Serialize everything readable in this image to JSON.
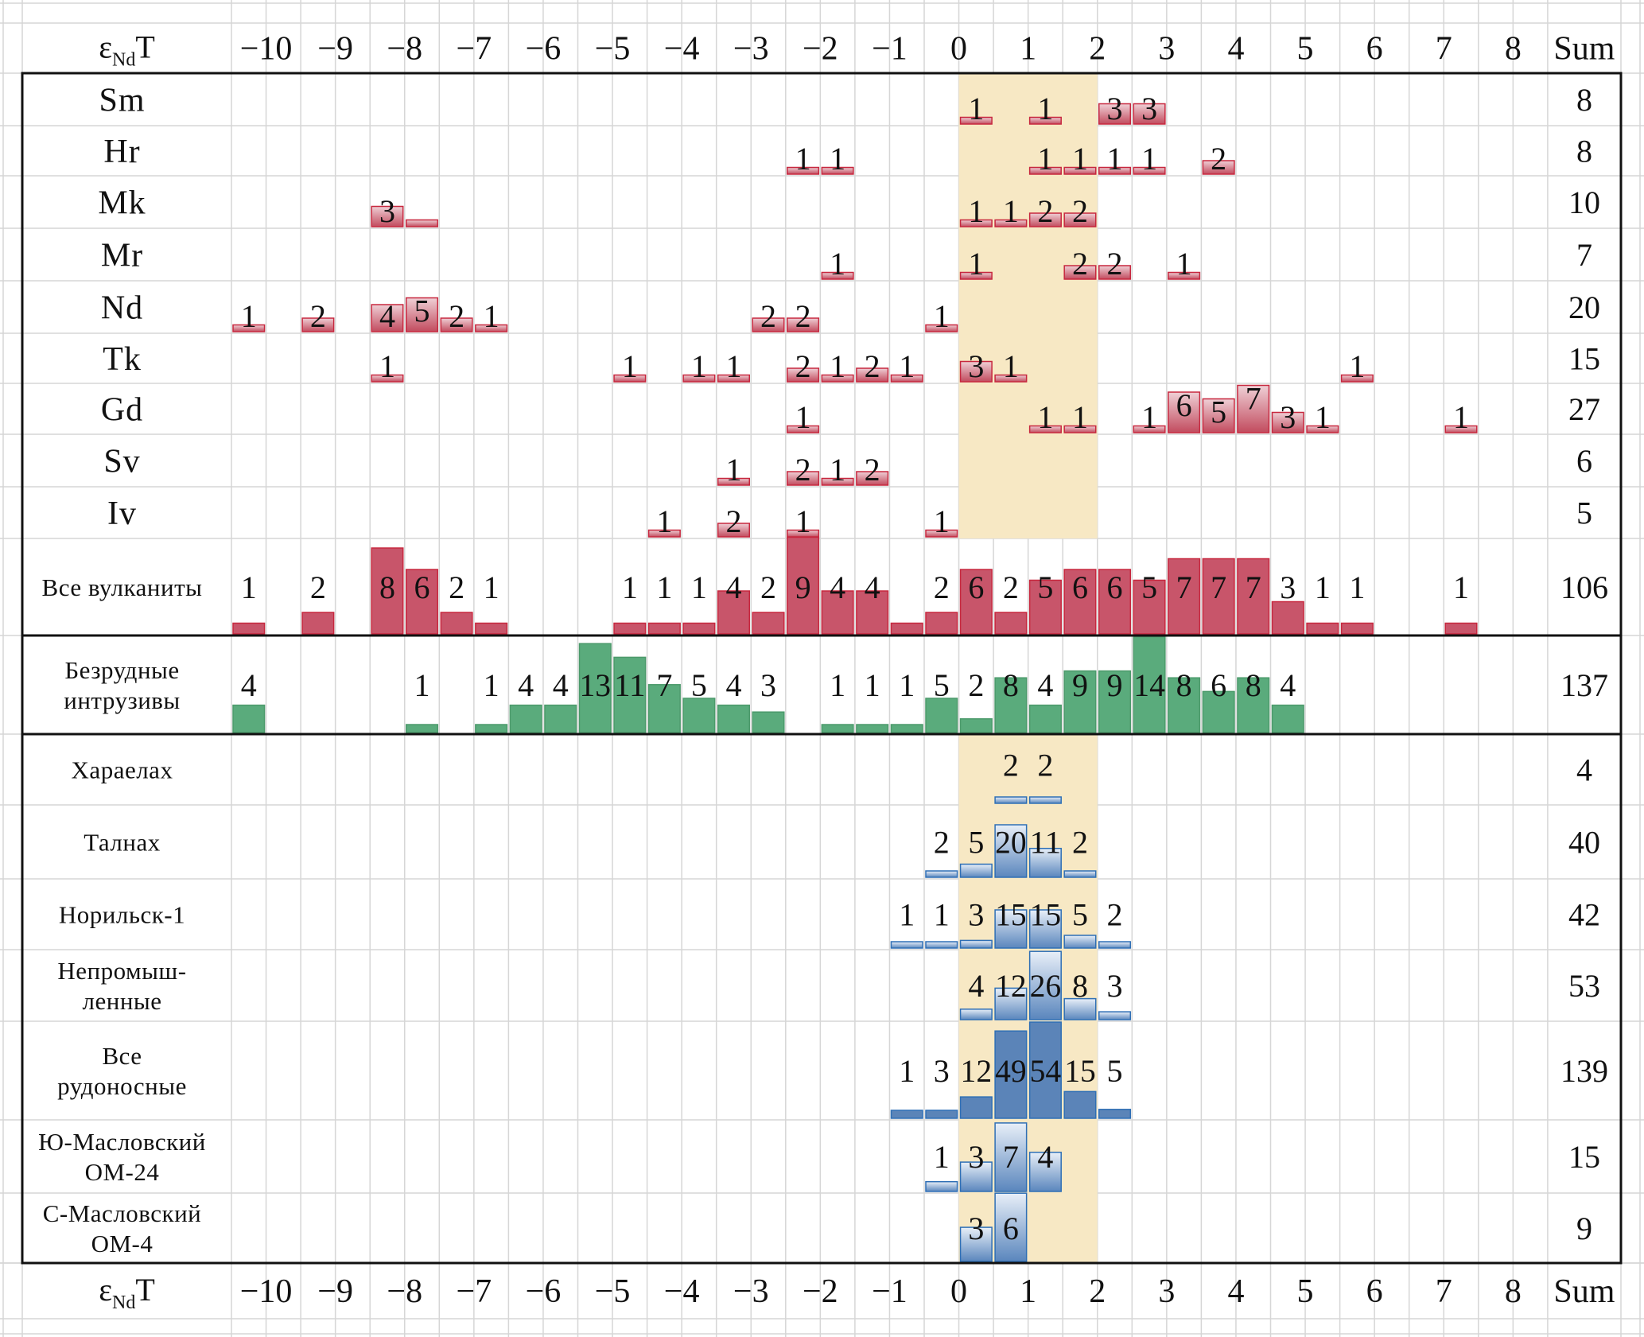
{
  "chart_data": {
    "type": "bar",
    "title": "",
    "axis_label": "εNdT",
    "axis_label_main": "ε",
    "axis_label_sub": "Nd",
    "axis_label_suffix": "T",
    "sum_label": "Sum",
    "bin_width": 0.5,
    "bins_start": -10,
    "bins_end": 8.5,
    "tick_labels": [
      "−10",
      "−9",
      "−8",
      "−7",
      "−6",
      "−5",
      "−4",
      "−3",
      "−2",
      "−1",
      "0",
      "1",
      "2",
      "3",
      "4",
      "5",
      "6",
      "7",
      "8"
    ],
    "tick_values": [
      -10,
      -9,
      -8,
      -7,
      -6,
      -5,
      -4,
      -3,
      -2,
      -1,
      0,
      1,
      2,
      3,
      4,
      5,
      6,
      7,
      8
    ],
    "highlight_range": [
      0.5,
      2.5
    ],
    "colors": {
      "volcanic": "#c8556a",
      "volcanic_light": "#ecc6cd",
      "volcanic_border": "#c7283f",
      "intrusive": "#5aab7c",
      "intrusive_border": "#4c9a6b",
      "ore": "#5b84b8",
      "ore_light": "#e6eef8",
      "ore_border": "#2f6fb5",
      "highlight": "#f7e8c4",
      "grid": "#d6d6d6"
    },
    "groups": [
      {
        "name": "volcanics",
        "series": [
          {
            "name": "Sm",
            "sum": 8,
            "points": [
              {
                "x": 0.5,
                "n": 1
              },
              {
                "x": 1.5,
                "n": 1
              },
              {
                "x": 2.5,
                "n": 3
              },
              {
                "x": 3.0,
                "n": 3
              }
            ]
          },
          {
            "name": "Hr",
            "sum": 8,
            "points": [
              {
                "x": -2.0,
                "n": 1
              },
              {
                "x": -1.5,
                "n": 1
              },
              {
                "x": 1.5,
                "n": 1
              },
              {
                "x": 2.0,
                "n": 1
              },
              {
                "x": 2.5,
                "n": 1
              },
              {
                "x": 3.0,
                "n": 1
              },
              {
                "x": 4.0,
                "n": 2
              }
            ]
          },
          {
            "name": "Mk",
            "sum": 10,
            "points": [
              {
                "x": -8.0,
                "n": 3
              },
              {
                "x": -7.5,
                "n": 1,
                "unlabeled": true
              },
              {
                "x": 0.5,
                "n": 1
              },
              {
                "x": 1.0,
                "n": 1
              },
              {
                "x": 1.5,
                "n": 2
              },
              {
                "x": 2.0,
                "n": 2
              }
            ]
          },
          {
            "name": "Mr",
            "sum": 7,
            "points": [
              {
                "x": -1.5,
                "n": 1
              },
              {
                "x": 0.5,
                "n": 1
              },
              {
                "x": 2.0,
                "n": 2
              },
              {
                "x": 2.5,
                "n": 2
              },
              {
                "x": 3.5,
                "n": 1
              }
            ]
          },
          {
            "name": "Nd",
            "sum": 20,
            "points": [
              {
                "x": -10.0,
                "n": 1
              },
              {
                "x": -9.0,
                "n": 2
              },
              {
                "x": -8.0,
                "n": 4
              },
              {
                "x": -7.5,
                "n": 5
              },
              {
                "x": -7.0,
                "n": 2
              },
              {
                "x": -6.5,
                "n": 1
              },
              {
                "x": -2.5,
                "n": 2
              },
              {
                "x": -2.0,
                "n": 2
              },
              {
                "x": 0.0,
                "n": 1
              }
            ]
          },
          {
            "name": "Tk",
            "sum": 15,
            "points": [
              {
                "x": -8.0,
                "n": 1
              },
              {
                "x": -4.5,
                "n": 1
              },
              {
                "x": -3.5,
                "n": 1
              },
              {
                "x": -3.0,
                "n": 1
              },
              {
                "x": -2.0,
                "n": 2
              },
              {
                "x": -1.5,
                "n": 1
              },
              {
                "x": -1.0,
                "n": 2
              },
              {
                "x": -0.5,
                "n": 1
              },
              {
                "x": 0.5,
                "n": 3
              },
              {
                "x": 1.0,
                "n": 1
              },
              {
                "x": 6.0,
                "n": 1
              }
            ]
          },
          {
            "name": "Gd",
            "sum": 27,
            "points": [
              {
                "x": -2.0,
                "n": 1
              },
              {
                "x": 1.5,
                "n": 1
              },
              {
                "x": 2.0,
                "n": 1
              },
              {
                "x": 3.0,
                "n": 1
              },
              {
                "x": 3.5,
                "n": 6
              },
              {
                "x": 4.0,
                "n": 5
              },
              {
                "x": 4.5,
                "n": 7
              },
              {
                "x": 5.0,
                "n": 3
              },
              {
                "x": 5.5,
                "n": 1
              },
              {
                "x": 7.5,
                "n": 1
              }
            ]
          },
          {
            "name": "Sv",
            "sum": 6,
            "points": [
              {
                "x": -3.0,
                "n": 1
              },
              {
                "x": -2.0,
                "n": 2
              },
              {
                "x": -1.5,
                "n": 1
              },
              {
                "x": -1.0,
                "n": 2
              }
            ]
          },
          {
            "name": "Iv",
            "sum": 5,
            "points": [
              {
                "x": -4.0,
                "n": 1
              },
              {
                "x": -3.0,
                "n": 2
              },
              {
                "x": -2.0,
                "n": 1
              },
              {
                "x": 0.0,
                "n": 1
              }
            ]
          },
          {
            "name": "Все вулканиты",
            "sum": 106,
            "points": [
              {
                "x": -10.0,
                "n": 1
              },
              {
                "x": -9.0,
                "n": 2
              },
              {
                "x": -8.0,
                "n": 8
              },
              {
                "x": -7.5,
                "n": 6
              },
              {
                "x": -7.0,
                "n": 2
              },
              {
                "x": -6.5,
                "n": 1
              },
              {
                "x": -4.5,
                "n": 1
              },
              {
                "x": -4.0,
                "n": 1
              },
              {
                "x": -3.5,
                "n": 1
              },
              {
                "x": -3.0,
                "n": 4
              },
              {
                "x": -2.5,
                "n": 2
              },
              {
                "x": -2.0,
                "n": 9
              },
              {
                "x": -1.5,
                "n": 4
              },
              {
                "x": -1.0,
                "n": 4
              },
              {
                "x": -0.5,
                "n": 1,
                "unlabeled": true
              },
              {
                "x": 0.0,
                "n": 2
              },
              {
                "x": 0.5,
                "n": 6
              },
              {
                "x": 1.0,
                "n": 2
              },
              {
                "x": 1.5,
                "n": 5
              },
              {
                "x": 2.0,
                "n": 6
              },
              {
                "x": 2.5,
                "n": 6
              },
              {
                "x": 3.0,
                "n": 5
              },
              {
                "x": 3.5,
                "n": 7
              },
              {
                "x": 4.0,
                "n": 7
              },
              {
                "x": 4.5,
                "n": 7
              },
              {
                "x": 5.0,
                "n": 3
              },
              {
                "x": 5.5,
                "n": 1
              },
              {
                "x": 6.0,
                "n": 1
              },
              {
                "x": 7.5,
                "n": 1
              }
            ]
          }
        ]
      },
      {
        "name": "barren_intrusions",
        "series": [
          {
            "name": "Безрудные интрузивы",
            "label_lines": [
              "Безрудные",
              "интрузивы"
            ],
            "sum": 137,
            "points": [
              {
                "x": -10.0,
                "n": 4
              },
              {
                "x": -7.5,
                "n": 1
              },
              {
                "x": -6.5,
                "n": 1
              },
              {
                "x": -6.0,
                "n": 4
              },
              {
                "x": -5.5,
                "n": 4
              },
              {
                "x": -5.0,
                "n": 13
              },
              {
                "x": -4.5,
                "n": 11
              },
              {
                "x": -4.0,
                "n": 7
              },
              {
                "x": -3.5,
                "n": 5
              },
              {
                "x": -3.0,
                "n": 4
              },
              {
                "x": -2.5,
                "n": 3
              },
              {
                "x": -1.5,
                "n": 1
              },
              {
                "x": -1.0,
                "n": 1
              },
              {
                "x": -0.5,
                "n": 1
              },
              {
                "x": 0.0,
                "n": 5
              },
              {
                "x": 0.5,
                "n": 2
              },
              {
                "x": 1.0,
                "n": 8
              },
              {
                "x": 1.5,
                "n": 4
              },
              {
                "x": 2.0,
                "n": 9
              },
              {
                "x": 2.5,
                "n": 9
              },
              {
                "x": 3.0,
                "n": 14
              },
              {
                "x": 3.5,
                "n": 8
              },
              {
                "x": 4.0,
                "n": 6
              },
              {
                "x": 4.5,
                "n": 8
              },
              {
                "x": 5.0,
                "n": 4
              }
            ]
          }
        ]
      },
      {
        "name": "ore_bearing",
        "series": [
          {
            "name": "Хараелах",
            "label_lines": [
              "Хараелах"
            ],
            "sum": 4,
            "points": [
              {
                "x": 1.0,
                "n": 2
              },
              {
                "x": 1.5,
                "n": 2
              }
            ]
          },
          {
            "name": "Талнах",
            "label_lines": [
              "Талнах"
            ],
            "sum": 40,
            "points": [
              {
                "x": 0.0,
                "n": 2
              },
              {
                "x": 0.5,
                "n": 5
              },
              {
                "x": 1.0,
                "n": 20
              },
              {
                "x": 1.5,
                "n": 11
              },
              {
                "x": 2.0,
                "n": 2
              }
            ]
          },
          {
            "name": "Норильск-1",
            "label_lines": [
              "Норильск-1"
            ],
            "sum": 42,
            "points": [
              {
                "x": -0.5,
                "n": 1
              },
              {
                "x": 0.0,
                "n": 1
              },
              {
                "x": 0.5,
                "n": 3
              },
              {
                "x": 1.0,
                "n": 15
              },
              {
                "x": 1.5,
                "n": 15
              },
              {
                "x": 2.0,
                "n": 5
              },
              {
                "x": 2.5,
                "n": 2
              }
            ]
          },
          {
            "name": "Непромышленные",
            "label_lines": [
              "Непромыш-",
              "ленные"
            ],
            "sum": 53,
            "points": [
              {
                "x": 0.5,
                "n": 4
              },
              {
                "x": 1.0,
                "n": 12
              },
              {
                "x": 1.5,
                "n": 26
              },
              {
                "x": 2.0,
                "n": 8
              },
              {
                "x": 2.5,
                "n": 3
              }
            ]
          },
          {
            "name": "Все рудоносные",
            "label_lines": [
              "Все",
              "рудоносные"
            ],
            "sum": 139,
            "solid": true,
            "points": [
              {
                "x": -0.5,
                "n": 1
              },
              {
                "x": 0.0,
                "n": 3
              },
              {
                "x": 0.5,
                "n": 12
              },
              {
                "x": 1.0,
                "n": 49
              },
              {
                "x": 1.5,
                "n": 54
              },
              {
                "x": 2.0,
                "n": 15
              },
              {
                "x": 2.5,
                "n": 5
              }
            ]
          },
          {
            "name": "Ю-Масловский ОМ-24",
            "label_lines": [
              "Ю-Масловский",
              "ОМ-24"
            ],
            "sum": 15,
            "points": [
              {
                "x": 0.0,
                "n": 1
              },
              {
                "x": 0.5,
                "n": 3
              },
              {
                "x": 1.0,
                "n": 7
              },
              {
                "x": 1.5,
                "n": 4
              }
            ]
          },
          {
            "name": "С-Масловский ОМ-4",
            "label_lines": [
              "С-Масловский",
              "ОМ-4"
            ],
            "sum": 9,
            "points": [
              {
                "x": 0.5,
                "n": 3
              },
              {
                "x": 1.0,
                "n": 6
              }
            ]
          }
        ]
      }
    ]
  }
}
